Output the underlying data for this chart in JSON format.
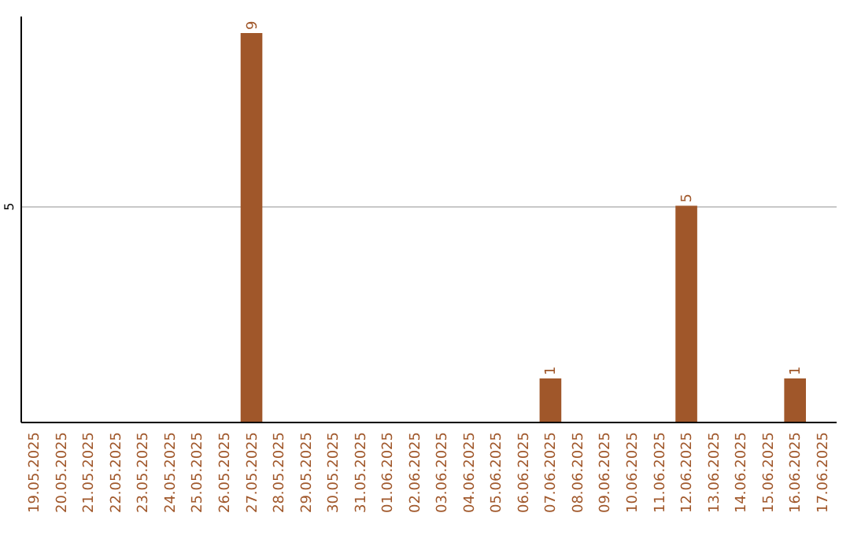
{
  "chart_data": {
    "type": "bar",
    "categories": [
      "19.05.2025",
      "20.05.2025",
      "21.05.2025",
      "22.05.2025",
      "23.05.2025",
      "24.05.2025",
      "25.05.2025",
      "26.05.2025",
      "27.05.2025",
      "28.05.2025",
      "29.05.2025",
      "30.05.2025",
      "31.05.2025",
      "01.06.2025",
      "02.06.2025",
      "03.06.2025",
      "04.06.2025",
      "05.06.2025",
      "06.06.2025",
      "07.06.2025",
      "08.06.2025",
      "09.06.2025",
      "10.06.2025",
      "11.06.2025",
      "12.06.2025",
      "13.06.2025",
      "14.06.2025",
      "15.06.2025",
      "16.06.2025",
      "17.06.2025"
    ],
    "values": [
      0,
      0,
      0,
      0,
      0,
      0,
      0,
      0,
      9,
      0,
      0,
      0,
      0,
      0,
      0,
      0,
      0,
      0,
      0,
      1,
      0,
      0,
      0,
      0,
      5,
      0,
      0,
      0,
      1,
      0
    ],
    "value_labels": [
      null,
      null,
      null,
      null,
      null,
      null,
      null,
      null,
      "9",
      null,
      null,
      null,
      null,
      null,
      null,
      null,
      null,
      null,
      null,
      "1",
      null,
      null,
      null,
      null,
      "5",
      null,
      null,
      null,
      "1",
      null
    ],
    "color": "#a0572a",
    "ylim": [
      0,
      9.4
    ],
    "yticks": [
      5
    ],
    "grid": "y"
  }
}
